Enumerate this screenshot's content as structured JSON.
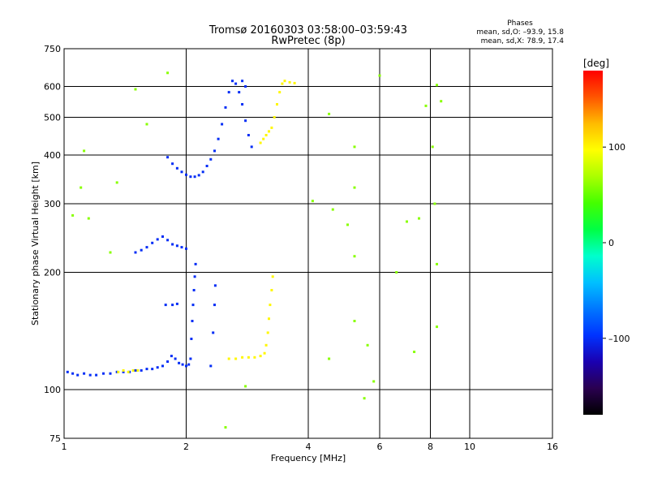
{
  "chart_data": {
    "type": "scatter",
    "title": "Tromsø 20160303 03:58:00–03:59:43",
    "subtitle": "RwPretec (8p)",
    "xlabel": "Frequency [MHz]",
    "ylabel": "Stationary phase Virtual Height [km]",
    "x_scale": "log",
    "y_scale": "log",
    "xlim": [
      1,
      16
    ],
    "ylim": [
      75,
      750
    ],
    "x_ticks": [
      "1",
      "2",
      "4",
      "6",
      "8",
      "10",
      "16"
    ],
    "x_tick_values": [
      1,
      2,
      4,
      6,
      8,
      10,
      16
    ],
    "y_ticks": [
      "75",
      "100",
      "200",
      "300",
      "400",
      "500",
      "600",
      "750"
    ],
    "y_tick_values": [
      75,
      100,
      200,
      300,
      400,
      500,
      600,
      750
    ],
    "grid": true,
    "stats": {
      "heading": "Phases",
      "line1": "mean, sd,O: –93.9, 15.8",
      "line2": "mean, sd,X:  78.9, 17.4"
    },
    "colorbar": {
      "label": "[deg]",
      "range": [
        -180,
        180
      ],
      "ticks": [
        "100",
        "0",
        "–100"
      ],
      "tick_values": [
        100,
        0,
        -100
      ]
    },
    "colormap": [
      "#000000",
      "#2a0050",
      "#1a00b0",
      "#0033ff",
      "#0077ff",
      "#00c0ff",
      "#00ffcc",
      "#00ff44",
      "#44ff00",
      "#aaff00",
      "#ffff00",
      "#ffbb00",
      "#ff5500",
      "#ff0000"
    ],
    "series": [
      {
        "trace": "e-region-o",
        "phase": -100,
        "points": [
          [
            1.02,
            111
          ],
          [
            1.05,
            110
          ],
          [
            1.08,
            109
          ],
          [
            1.12,
            110
          ],
          [
            1.16,
            109
          ],
          [
            1.2,
            109
          ],
          [
            1.25,
            110
          ],
          [
            1.3,
            110
          ],
          [
            1.35,
            111
          ],
          [
            1.4,
            111
          ],
          [
            1.45,
            111
          ],
          [
            1.5,
            112
          ],
          [
            1.55,
            112
          ],
          [
            1.6,
            113
          ],
          [
            1.65,
            113
          ],
          [
            1.7,
            114
          ],
          [
            1.75,
            115
          ],
          [
            1.8,
            118
          ],
          [
            1.84,
            122
          ],
          [
            1.88,
            120
          ],
          [
            1.92,
            117
          ],
          [
            1.96,
            116
          ],
          [
            2.0,
            115
          ],
          [
            2.03,
            116
          ]
        ]
      },
      {
        "trace": "e-region-x",
        "phase": 100,
        "points": [
          [
            1.36,
            111
          ],
          [
            1.4,
            112
          ],
          [
            1.44,
            111
          ],
          [
            1.48,
            112
          ],
          [
            1.52,
            112
          ],
          [
            2.55,
            120
          ],
          [
            2.65,
            120
          ],
          [
            2.75,
            121
          ],
          [
            2.85,
            121
          ],
          [
            2.95,
            121
          ],
          [
            3.05,
            122
          ],
          [
            3.12,
            124
          ],
          [
            3.15,
            130
          ],
          [
            3.18,
            140
          ],
          [
            3.2,
            152
          ],
          [
            3.22,
            165
          ],
          [
            3.25,
            180
          ],
          [
            3.27,
            195
          ]
        ]
      },
      {
        "trace": "es-vertical",
        "phase": -100,
        "points": [
          [
            2.05,
            120
          ],
          [
            2.06,
            135
          ],
          [
            2.07,
            150
          ],
          [
            2.08,
            165
          ],
          [
            2.09,
            180
          ],
          [
            2.1,
            195
          ],
          [
            2.11,
            210
          ],
          [
            2.3,
            115
          ],
          [
            2.33,
            140
          ],
          [
            2.35,
            165
          ],
          [
            2.36,
            185
          ]
        ]
      },
      {
        "trace": "f-region-o",
        "phase": -100,
        "points": [
          [
            1.8,
            395
          ],
          [
            1.85,
            380
          ],
          [
            1.9,
            370
          ],
          [
            1.95,
            362
          ],
          [
            2.0,
            356
          ],
          [
            2.05,
            352
          ],
          [
            2.1,
            352
          ],
          [
            2.15,
            355
          ],
          [
            2.2,
            362
          ],
          [
            2.25,
            375
          ],
          [
            2.3,
            390
          ],
          [
            2.35,
            410
          ],
          [
            2.4,
            440
          ],
          [
            2.45,
            480
          ],
          [
            2.5,
            530
          ],
          [
            2.55,
            580
          ],
          [
            2.6,
            620
          ],
          [
            2.65,
            610
          ],
          [
            2.7,
            580
          ],
          [
            2.75,
            540
          ],
          [
            2.8,
            490
          ],
          [
            2.85,
            450
          ],
          [
            2.9,
            420
          ],
          [
            2.75,
            620
          ],
          [
            2.8,
            600
          ]
        ]
      },
      {
        "trace": "f-region-x",
        "phase": 100,
        "points": [
          [
            3.05,
            430
          ],
          [
            3.1,
            440
          ],
          [
            3.15,
            450
          ],
          [
            3.2,
            460
          ],
          [
            3.25,
            470
          ],
          [
            3.3,
            500
          ],
          [
            3.35,
            540
          ],
          [
            3.4,
            580
          ],
          [
            3.45,
            610
          ],
          [
            3.5,
            620
          ],
          [
            3.6,
            615
          ],
          [
            3.7,
            612
          ]
        ]
      },
      {
        "trace": "multi-hop",
        "phase": -100,
        "points": [
          [
            1.5,
            225
          ],
          [
            1.55,
            228
          ],
          [
            1.6,
            232
          ],
          [
            1.65,
            238
          ],
          [
            1.7,
            243
          ],
          [
            1.75,
            247
          ],
          [
            1.8,
            242
          ],
          [
            1.85,
            236
          ],
          [
            1.9,
            234
          ],
          [
            1.95,
            232
          ],
          [
            2.0,
            230
          ],
          [
            1.78,
            165
          ],
          [
            1.85,
            165
          ],
          [
            1.9,
            166
          ]
        ]
      },
      {
        "trace": "scattered",
        "phase": 60,
        "points": [
          [
            1.05,
            280
          ],
          [
            1.1,
            330
          ],
          [
            1.12,
            410
          ],
          [
            1.15,
            275
          ],
          [
            1.3,
            225
          ],
          [
            1.35,
            340
          ],
          [
            1.5,
            590
          ],
          [
            1.6,
            480
          ],
          [
            1.8,
            650
          ],
          [
            2.5,
            80
          ],
          [
            2.8,
            102
          ],
          [
            4.1,
            305
          ],
          [
            4.5,
            120
          ],
          [
            4.5,
            510
          ],
          [
            4.6,
            290
          ],
          [
            5.0,
            265
          ],
          [
            5.2,
            420
          ],
          [
            5.2,
            330
          ],
          [
            5.2,
            220
          ],
          [
            5.2,
            150
          ],
          [
            5.5,
            95
          ],
          [
            5.6,
            130
          ],
          [
            5.8,
            105
          ],
          [
            6.0,
            640
          ],
          [
            6.6,
            200
          ],
          [
            7.0,
            270
          ],
          [
            7.3,
            125
          ],
          [
            7.5,
            275
          ],
          [
            7.8,
            535
          ],
          [
            8.1,
            420
          ],
          [
            8.2,
            300
          ],
          [
            8.3,
            605
          ],
          [
            8.3,
            145
          ],
          [
            8.3,
            210
          ],
          [
            8.5,
            550
          ]
        ]
      }
    ]
  }
}
